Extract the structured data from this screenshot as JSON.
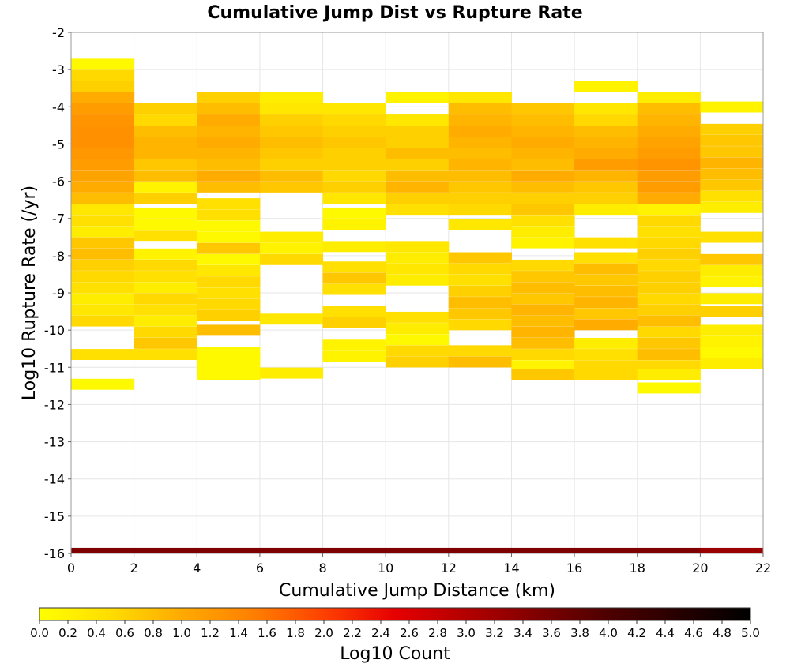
{
  "chart_data": {
    "type": "heatmap",
    "title": "Cumulative Jump Dist vs Rupture Rate",
    "xlabel": "Cumulative Jump Distance (km)",
    "ylabel": "Log10 Rupture Rate (/yr)",
    "xlim": [
      0,
      22
    ],
    "ylim": [
      -16,
      -2
    ],
    "x_ticks": [
      "0",
      "2",
      "4",
      "6",
      "8",
      "10",
      "12",
      "14",
      "16",
      "18",
      "20",
      "22"
    ],
    "y_ticks": [
      "-2",
      "-3",
      "-4",
      "-5",
      "-6",
      "-7",
      "-8",
      "-9",
      "-10",
      "-11",
      "-12",
      "-13",
      "-14",
      "-15",
      "-16"
    ],
    "x_bin_width": 2,
    "y_bin_height": 0.285,
    "colorbar": {
      "label": "Log10 Count",
      "range": [
        0,
        5
      ],
      "ticks": [
        "0.0",
        "0.2",
        "0.4",
        "0.6",
        "0.8",
        "1.0",
        "1.2",
        "1.4",
        "1.6",
        "1.8",
        "2.0",
        "2.2",
        "2.4",
        "2.6",
        "2.8",
        "3.0",
        "3.2",
        "3.4",
        "3.6",
        "3.8",
        "4.0",
        "4.2",
        "4.4",
        "4.6",
        "4.8",
        "5.0"
      ],
      "colors": [
        "#ffff00",
        "#ffdd00",
        "#ffaa00",
        "#ff8000",
        "#ff4000",
        "#e60000",
        "#b30000",
        "#800000",
        "#4d0000",
        "#000000"
      ]
    },
    "bottom_row": {
      "y": -16,
      "values": [
        3.9,
        3.9,
        3.9,
        3.9,
        3.9,
        3.9,
        3.9,
        3.9,
        3.9,
        3.9,
        3.6
      ]
    },
    "columns": [
      {
        "x": 0,
        "cells": [
          [
            -2.85,
            0.1
          ],
          [
            -3.15,
            0.6
          ],
          [
            -3.45,
            0.7
          ],
          [
            -3.75,
            1.1
          ],
          [
            -4.05,
            1.3
          ],
          [
            -4.35,
            1.4
          ],
          [
            -4.65,
            1.45
          ],
          [
            -4.95,
            1.45
          ],
          [
            -5.25,
            1.35
          ],
          [
            -5.55,
            1.3
          ],
          [
            -5.85,
            1.2
          ],
          [
            -6.15,
            1.1
          ],
          [
            -6.45,
            0.9
          ],
          [
            -6.75,
            0.4
          ],
          [
            -7.05,
            0.5
          ],
          [
            -7.35,
            0.3
          ],
          [
            -7.65,
            0.8
          ],
          [
            -7.95,
            0.9
          ],
          [
            -8.25,
            0.7
          ],
          [
            -8.55,
            0.6
          ],
          [
            -8.85,
            0.5
          ],
          [
            -9.15,
            0.3
          ],
          [
            -9.45,
            0.4
          ],
          [
            -9.75,
            0.6
          ],
          [
            -10.65,
            0.5
          ],
          [
            -11.45,
            0.1
          ]
        ]
      },
      {
        "x": 2,
        "cells": [
          [
            -4.05,
            0.7
          ],
          [
            -4.35,
            0.6
          ],
          [
            -4.65,
            0.9
          ],
          [
            -4.95,
            1.0
          ],
          [
            -5.25,
            1.0
          ],
          [
            -5.55,
            0.8
          ],
          [
            -5.85,
            0.9
          ],
          [
            -6.15,
            0.2
          ],
          [
            -6.45,
            0.7
          ],
          [
            -6.85,
            0.1
          ],
          [
            -7.15,
            0.1
          ],
          [
            -7.45,
            0.5
          ],
          [
            -7.95,
            0.2
          ],
          [
            -8.25,
            0.6
          ],
          [
            -8.55,
            0.5
          ],
          [
            -8.85,
            0.3
          ],
          [
            -9.15,
            0.6
          ],
          [
            -9.45,
            0.5
          ],
          [
            -9.75,
            0.3
          ],
          [
            -10.05,
            0.6
          ],
          [
            -10.35,
            0.8
          ],
          [
            -10.65,
            0.5
          ]
        ]
      },
      {
        "x": 4,
        "cells": [
          [
            -3.75,
            0.7
          ],
          [
            -4.05,
            0.9
          ],
          [
            -4.35,
            1.1
          ],
          [
            -4.65,
            1.0
          ],
          [
            -4.95,
            1.1
          ],
          [
            -5.25,
            1.0
          ],
          [
            -5.55,
            0.9
          ],
          [
            -5.85,
            1.1
          ],
          [
            -6.15,
            0.9
          ],
          [
            -6.6,
            0.5
          ],
          [
            -6.9,
            0.5
          ],
          [
            -7.2,
            0.1
          ],
          [
            -7.5,
            0.1
          ],
          [
            -7.8,
            0.8
          ],
          [
            -8.1,
            0.1
          ],
          [
            -8.4,
            0.4
          ],
          [
            -8.7,
            0.6
          ],
          [
            -9.0,
            0.5
          ],
          [
            -9.3,
            0.6
          ],
          [
            -9.6,
            0.7
          ],
          [
            -10.0,
            0.9
          ],
          [
            -10.6,
            0.1
          ],
          [
            -10.9,
            0.1
          ],
          [
            -11.2,
            0.1
          ]
        ]
      },
      {
        "x": 6,
        "cells": [
          [
            -3.75,
            0.3
          ],
          [
            -4.05,
            0.4
          ],
          [
            -4.35,
            0.7
          ],
          [
            -4.65,
            0.8
          ],
          [
            -4.95,
            0.9
          ],
          [
            -5.25,
            0.8
          ],
          [
            -5.55,
            0.7
          ],
          [
            -5.85,
            0.9
          ],
          [
            -6.15,
            0.8
          ],
          [
            -7.5,
            0.3
          ],
          [
            -7.8,
            0.2
          ],
          [
            -8.1,
            0.6
          ],
          [
            -9.7,
            0.4
          ],
          [
            -11.15,
            0.3
          ]
        ]
      },
      {
        "x": 8,
        "cells": [
          [
            -4.05,
            0.4
          ],
          [
            -4.35,
            0.6
          ],
          [
            -4.65,
            0.7
          ],
          [
            -4.95,
            0.8
          ],
          [
            -5.25,
            0.7
          ],
          [
            -5.55,
            0.7
          ],
          [
            -5.85,
            0.6
          ],
          [
            -6.15,
            0.7
          ],
          [
            -6.45,
            0.4
          ],
          [
            -6.85,
            0.1
          ],
          [
            -7.15,
            0.2
          ],
          [
            -7.75,
            0.3
          ],
          [
            -8.3,
            0.5
          ],
          [
            -8.6,
            0.8
          ],
          [
            -8.9,
            0.5
          ],
          [
            -9.5,
            0.5
          ],
          [
            -9.8,
            0.7
          ],
          [
            -10.4,
            0.2
          ],
          [
            -10.7,
            0.2
          ]
        ]
      },
      {
        "x": 10,
        "cells": [
          [
            -3.75,
            0.2
          ],
          [
            -4.35,
            0.4
          ],
          [
            -4.65,
            0.7
          ],
          [
            -4.95,
            0.7
          ],
          [
            -5.25,
            0.9
          ],
          [
            -5.55,
            0.7
          ],
          [
            -5.85,
            0.9
          ],
          [
            -6.15,
            1.0
          ],
          [
            -6.45,
            0.7
          ],
          [
            -6.75,
            0.5
          ],
          [
            -7.75,
            0.4
          ],
          [
            -8.05,
            0.3
          ],
          [
            -8.35,
            0.4
          ],
          [
            -8.65,
            0.3
          ],
          [
            -9.65,
            0.5
          ],
          [
            -9.95,
            0.3
          ],
          [
            -10.25,
            0.1
          ],
          [
            -10.55,
            0.6
          ],
          [
            -10.85,
            0.7
          ]
        ]
      },
      {
        "x": 12,
        "cells": [
          [
            -3.75,
            0.4
          ],
          [
            -4.05,
            0.9
          ],
          [
            -4.35,
            1.0
          ],
          [
            -4.65,
            1.1
          ],
          [
            -4.95,
            1.0
          ],
          [
            -5.25,
            0.9
          ],
          [
            -5.55,
            1.0
          ],
          [
            -5.85,
            0.9
          ],
          [
            -6.15,
            0.8
          ],
          [
            -6.45,
            0.7
          ],
          [
            -6.75,
            0.6
          ],
          [
            -7.15,
            0.4
          ],
          [
            -8.05,
            0.8
          ],
          [
            -8.35,
            0.6
          ],
          [
            -8.65,
            0.5
          ],
          [
            -8.95,
            0.7
          ],
          [
            -9.25,
            0.9
          ],
          [
            -9.55,
            0.8
          ],
          [
            -9.85,
            0.6
          ],
          [
            -10.55,
            0.6
          ],
          [
            -10.85,
            0.9
          ]
        ]
      },
      {
        "x": 14,
        "cells": [
          [
            -4.05,
            0.8
          ],
          [
            -4.35,
            0.9
          ],
          [
            -4.65,
            1.0
          ],
          [
            -4.95,
            1.1
          ],
          [
            -5.25,
            1.0
          ],
          [
            -5.55,
            0.9
          ],
          [
            -5.85,
            1.1
          ],
          [
            -6.15,
            0.9
          ],
          [
            -6.45,
            0.7
          ],
          [
            -6.75,
            0.8
          ],
          [
            -7.05,
            0.5
          ],
          [
            -7.35,
            0.3
          ],
          [
            -7.65,
            0.2
          ],
          [
            -8.25,
            0.6
          ],
          [
            -8.55,
            0.8
          ],
          [
            -8.85,
            0.9
          ],
          [
            -9.15,
            0.8
          ],
          [
            -9.45,
            1.0
          ],
          [
            -9.75,
            0.9
          ],
          [
            -10.05,
            1.0
          ],
          [
            -10.35,
            0.9
          ],
          [
            -10.65,
            0.6
          ],
          [
            -10.95,
            0.2
          ],
          [
            -11.2,
            0.8
          ]
        ]
      },
      {
        "x": 16,
        "cells": [
          [
            -3.45,
            0.2
          ],
          [
            -4.05,
            0.4
          ],
          [
            -4.35,
            0.6
          ],
          [
            -4.65,
            0.9
          ],
          [
            -4.95,
            1.0
          ],
          [
            -5.25,
            1.1
          ],
          [
            -5.55,
            1.3
          ],
          [
            -5.85,
            1.0
          ],
          [
            -6.15,
            0.8
          ],
          [
            -6.45,
            0.7
          ],
          [
            -6.75,
            0.3
          ],
          [
            -7.65,
            0.5
          ],
          [
            -8.05,
            0.5
          ],
          [
            -8.35,
            0.9
          ],
          [
            -8.65,
            0.8
          ],
          [
            -8.95,
            0.9
          ],
          [
            -9.25,
            1.0
          ],
          [
            -9.55,
            0.8
          ],
          [
            -9.85,
            1.1
          ],
          [
            -10.35,
            0.3
          ],
          [
            -10.65,
            0.5
          ],
          [
            -10.95,
            0.6
          ],
          [
            -11.2,
            0.6
          ]
        ]
      },
      {
        "x": 18,
        "cells": [
          [
            -3.75,
            0.3
          ],
          [
            -4.05,
            0.9
          ],
          [
            -4.35,
            1.0
          ],
          [
            -4.65,
            1.1
          ],
          [
            -4.95,
            1.2
          ],
          [
            -5.25,
            1.3
          ],
          [
            -5.55,
            1.4
          ],
          [
            -5.85,
            1.3
          ],
          [
            -6.15,
            1.3
          ],
          [
            -6.45,
            1.1
          ],
          [
            -6.75,
            0.2
          ],
          [
            -7.05,
            0.6
          ],
          [
            -7.35,
            0.5
          ],
          [
            -7.65,
            0.6
          ],
          [
            -7.95,
            0.7
          ],
          [
            -8.25,
            0.6
          ],
          [
            -8.55,
            0.7
          ],
          [
            -8.85,
            0.7
          ],
          [
            -9.15,
            0.6
          ],
          [
            -9.45,
            0.7
          ],
          [
            -9.75,
            0.9
          ],
          [
            -10.05,
            0.6
          ],
          [
            -10.35,
            0.8
          ],
          [
            -10.65,
            0.9
          ],
          [
            -10.95,
            0.6
          ],
          [
            -11.2,
            0.3
          ],
          [
            -11.55,
            0.1
          ]
        ]
      },
      {
        "x": 20,
        "cells": [
          [
            -4.0,
            0.2
          ],
          [
            -4.6,
            0.7
          ],
          [
            -4.9,
            0.8
          ],
          [
            -5.2,
            0.8
          ],
          [
            -5.5,
            1.0
          ],
          [
            -5.8,
            0.9
          ],
          [
            -6.1,
            0.8
          ],
          [
            -6.4,
            0.5
          ],
          [
            -6.7,
            0.3
          ],
          [
            -7.5,
            0.5
          ],
          [
            -8.1,
            0.8
          ],
          [
            -8.4,
            0.3
          ],
          [
            -8.7,
            0.2
          ],
          [
            -9.15,
            0.3
          ],
          [
            -9.5,
            0.7
          ],
          [
            -10.0,
            0.3
          ],
          [
            -10.3,
            0.2
          ],
          [
            -10.6,
            0.1
          ],
          [
            -10.9,
            0.3
          ]
        ]
      }
    ]
  }
}
